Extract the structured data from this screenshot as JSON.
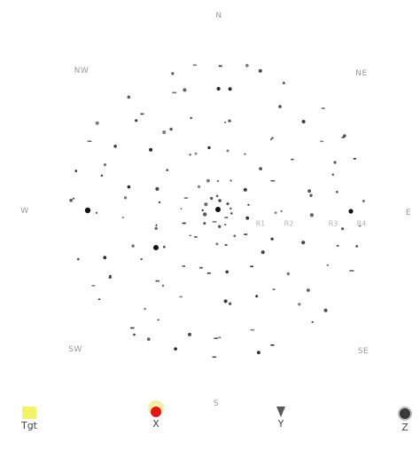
{
  "map": {
    "rim_labels": {
      "top": "N",
      "top_right": "NE",
      "right": "E",
      "bottom_right": "SE",
      "bottom": "S",
      "bottom_left": "SW",
      "left": "W",
      "top_left": "NW"
    },
    "inner_labels": [
      "R1",
      "R2",
      "R3",
      "R4"
    ],
    "point_color": "#1a1a1a",
    "ring_color": "#cccccc"
  },
  "legend": {
    "items": [
      {
        "label": "Tgt",
        "icon": "yellow-square-icon",
        "color": "#f3f36a"
      },
      {
        "label": "X",
        "icon": "red-dot-icon",
        "color": "#e01818"
      },
      {
        "label": "Y",
        "icon": "dark-marker-icon",
        "color": "#5a5a5a"
      },
      {
        "label": "Z",
        "icon": "gear-marker-icon",
        "color": "#3a3a3a"
      }
    ]
  }
}
